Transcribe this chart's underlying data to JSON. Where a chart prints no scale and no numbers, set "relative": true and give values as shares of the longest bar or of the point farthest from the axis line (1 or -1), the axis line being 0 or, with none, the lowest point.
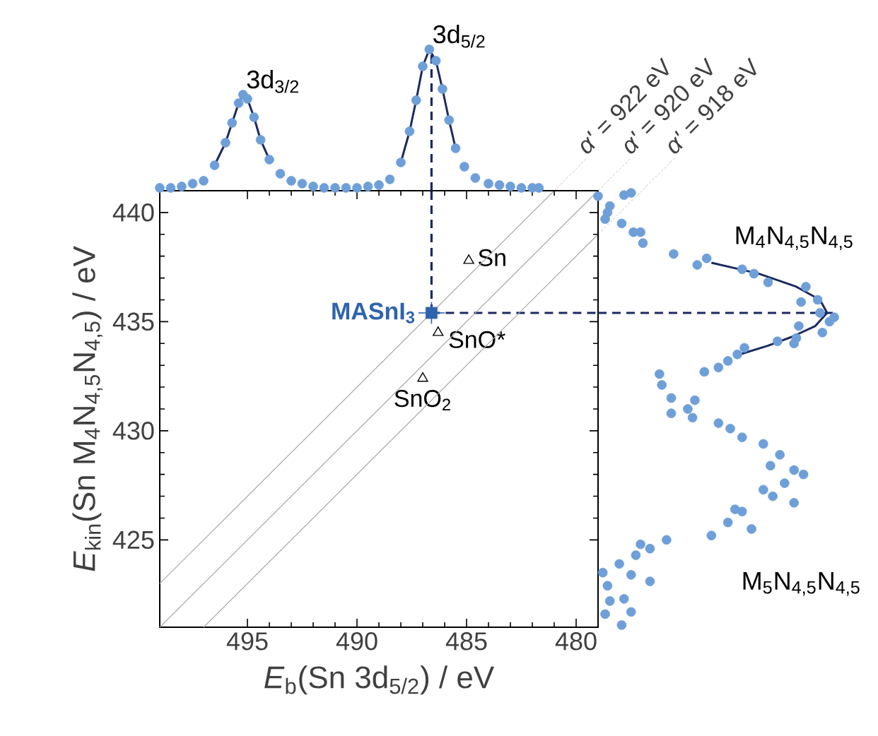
{
  "chart_data": [
    {
      "type": "scatter",
      "xlabel": "*E*$_{b}$(Sn 3d$_{5/2}$) / eV",
      "ylabel": "*E*$_{kin}$(Sn M$_{4}$N$_{4,5}$N$_{4,5}$) / eV",
      "xlim": [
        499,
        479
      ],
      "ylim": [
        421,
        441
      ],
      "xticks": [
        495,
        490,
        485,
        480
      ],
      "yticks": [
        425,
        430,
        435,
        440
      ],
      "grid": false,
      "series": [
        {
          "name": "MASnI$_{3}$",
          "color": "#2f63ad",
          "marker": "square",
          "x": [
            486.6
          ],
          "values": [
            435.4
          ],
          "errors": [
            0.5
          ],
          "xerrors": [
            0.6
          ]
        },
        {
          "name": "Sn",
          "color": "#000000",
          "marker": "triangle",
          "x": [
            484.9
          ],
          "values": [
            437.8
          ]
        },
        {
          "name": "SnO*",
          "color": "#000000",
          "marker": "triangle",
          "x": [
            486.3
          ],
          "values": [
            434.5
          ]
        },
        {
          "name": "SnO$_{2}$",
          "color": "#000000",
          "marker": "triangle",
          "x": [
            487.0
          ],
          "values": [
            432.4
          ]
        },
        {
          "type": "line",
          "name": "*α'* = 922 eV",
          "color": "#a8a8a8",
          "x": [
            499,
            481
          ],
          "values": [
            423,
            441
          ]
        },
        {
          "type": "line",
          "name": "*α'* = 920 eV",
          "color": "#a8a8a8",
          "x": [
            499,
            479
          ],
          "values": [
            421,
            441
          ]
        },
        {
          "type": "line",
          "name": "*α'* = 918 eV",
          "color": "#a8a8a8",
          "x": [
            497,
            479
          ],
          "values": [
            421,
            439
          ]
        }
      ],
      "ref_lines": [
        {
          "axis": "x",
          "value": 486.6,
          "color": "#1b2a5e",
          "line_style": "dashed"
        },
        {
          "axis": "y",
          "value": 435.4,
          "color": "#1b2a5e",
          "line_style": "dashed"
        }
      ]
    },
    {
      "type": "scatter",
      "relative": true,
      "xlim": [
        499,
        479
      ],
      "series": [
        {
          "color": "#6f9fd8",
          "marker": "circle",
          "x": [
            499,
            498.5,
            498,
            497.5,
            497,
            496.5,
            496,
            495.7,
            495.4,
            495.2,
            495.0,
            494.7,
            494.4,
            494,
            493.5,
            493,
            492.5,
            492,
            491.5,
            491,
            490.5,
            490,
            489.5,
            489,
            488.5,
            488,
            487.6,
            487.3,
            487.0,
            486.7,
            486.4,
            486.1,
            485.8,
            485.5,
            485.1,
            484.6,
            484,
            483.5,
            483,
            482.5,
            482,
            481.7
          ],
          "values": [
            0.02,
            0.02,
            0.03,
            0.05,
            0.07,
            0.18,
            0.34,
            0.48,
            0.62,
            0.68,
            0.65,
            0.52,
            0.36,
            0.22,
            0.12,
            0.07,
            0.05,
            0.03,
            0.02,
            0.02,
            0.02,
            0.02,
            0.03,
            0.04,
            0.08,
            0.2,
            0.42,
            0.64,
            0.88,
            1.0,
            0.92,
            0.72,
            0.5,
            0.3,
            0.17,
            0.09,
            0.05,
            0.04,
            0.03,
            0.02,
            0.02,
            0.02
          ]
        },
        {
          "type": "line",
          "color": "#1b2a5e",
          "x": [
            496.5,
            496,
            495.7,
            495.4,
            495.2,
            495.0,
            494.7,
            494.4,
            494
          ],
          "values": [
            0.18,
            0.34,
            0.48,
            0.62,
            0.68,
            0.65,
            0.52,
            0.36,
            0.22
          ]
        },
        {
          "type": "line",
          "color": "#1b2a5e",
          "x": [
            488,
            487.6,
            487.3,
            487.0,
            486.7,
            486.4,
            486.1,
            485.8,
            485.5
          ],
          "values": [
            0.2,
            0.42,
            0.64,
            0.88,
            1.0,
            0.92,
            0.72,
            0.5,
            0.3
          ]
        }
      ],
      "annotations": [
        {
          "text": "3d$_{3/2}$",
          "x": 495.2,
          "y": 0.68
        },
        {
          "text": "3d$_{5/2}$",
          "x": 486.7,
          "y": 1.0
        }
      ],
      "ref_lines": [
        {
          "axis": "x",
          "value": 486.6,
          "color": "#1b2a5e",
          "line_style": "dashed"
        }
      ]
    },
    {
      "type": "scatter",
      "relative": true,
      "orientation": "horizontal",
      "ylim": [
        421,
        441
      ],
      "series": [
        {
          "color": "#6f9fd8",
          "marker": "circle",
          "x": [
            440.75,
            440.0,
            440.3,
            439.7,
            440.8,
            440.9,
            439.5,
            439.1,
            439.1,
            438.6,
            438.1,
            437.6,
            437.9,
            437.4,
            437.2,
            436.8,
            436.6,
            435.9,
            436.0,
            435.4,
            435.0,
            435.2,
            434.8,
            434.5,
            434.25,
            434.1,
            434.0,
            433.8,
            433.5,
            433.2,
            432.9,
            432.7,
            432.6,
            432.1,
            431.5,
            430.8,
            431.4,
            431.0,
            430.6,
            430.35,
            430.1,
            429.7,
            429.4,
            428.9,
            428.4,
            428.2,
            428.0,
            427.6,
            427.3,
            427.0,
            426.7,
            426.3,
            426.4,
            425.5,
            425.8,
            425.2,
            425.0,
            424.6,
            424.8,
            424.3,
            423.9,
            423.4,
            423.5,
            423.1,
            422.9,
            422.3,
            422.2,
            421.6,
            421.7,
            421.1
          ],
          "values": [
            0.0,
            0.04,
            0.05,
            0.03,
            0.11,
            0.14,
            0.1,
            0.15,
            0.18,
            0.19,
            0.32,
            0.42,
            0.46,
            0.61,
            0.66,
            0.72,
            0.88,
            0.86,
            0.93,
            0.94,
            0.98,
            1.0,
            0.85,
            0.95,
            0.84,
            0.76,
            0.83,
            0.62,
            0.59,
            0.55,
            0.51,
            0.45,
            0.26,
            0.27,
            0.31,
            0.31,
            0.41,
            0.38,
            0.4,
            0.51,
            0.56,
            0.61,
            0.7,
            0.77,
            0.73,
            0.83,
            0.87,
            0.79,
            0.7,
            0.74,
            0.83,
            0.61,
            0.58,
            0.65,
            0.55,
            0.48,
            0.29,
            0.22,
            0.18,
            0.16,
            0.09,
            0.14,
            0.02,
            0.22,
            0.04,
            0.11,
            0.05,
            0.03,
            0.14,
            0.1
          ]
        },
        {
          "type": "line",
          "color": "#1b2a5e",
          "x": [
            437.7,
            437.2,
            436.6,
            436.0,
            435.4,
            434.8,
            434.3,
            433.9,
            433.5
          ],
          "values": [
            0.48,
            0.68,
            0.84,
            0.94,
            0.97,
            0.92,
            0.82,
            0.72,
            0.6
          ]
        }
      ],
      "annotations": [
        "M$_{4}$N$_{4,5}$N$_{4,5}$",
        "M$_{5}$N$_{4,5}$N$_{4,5}$"
      ],
      "ref_lines": [
        {
          "axis": "y",
          "value": 435.4,
          "color": "#1b2a5e",
          "line_style": "dashed"
        }
      ]
    }
  ]
}
